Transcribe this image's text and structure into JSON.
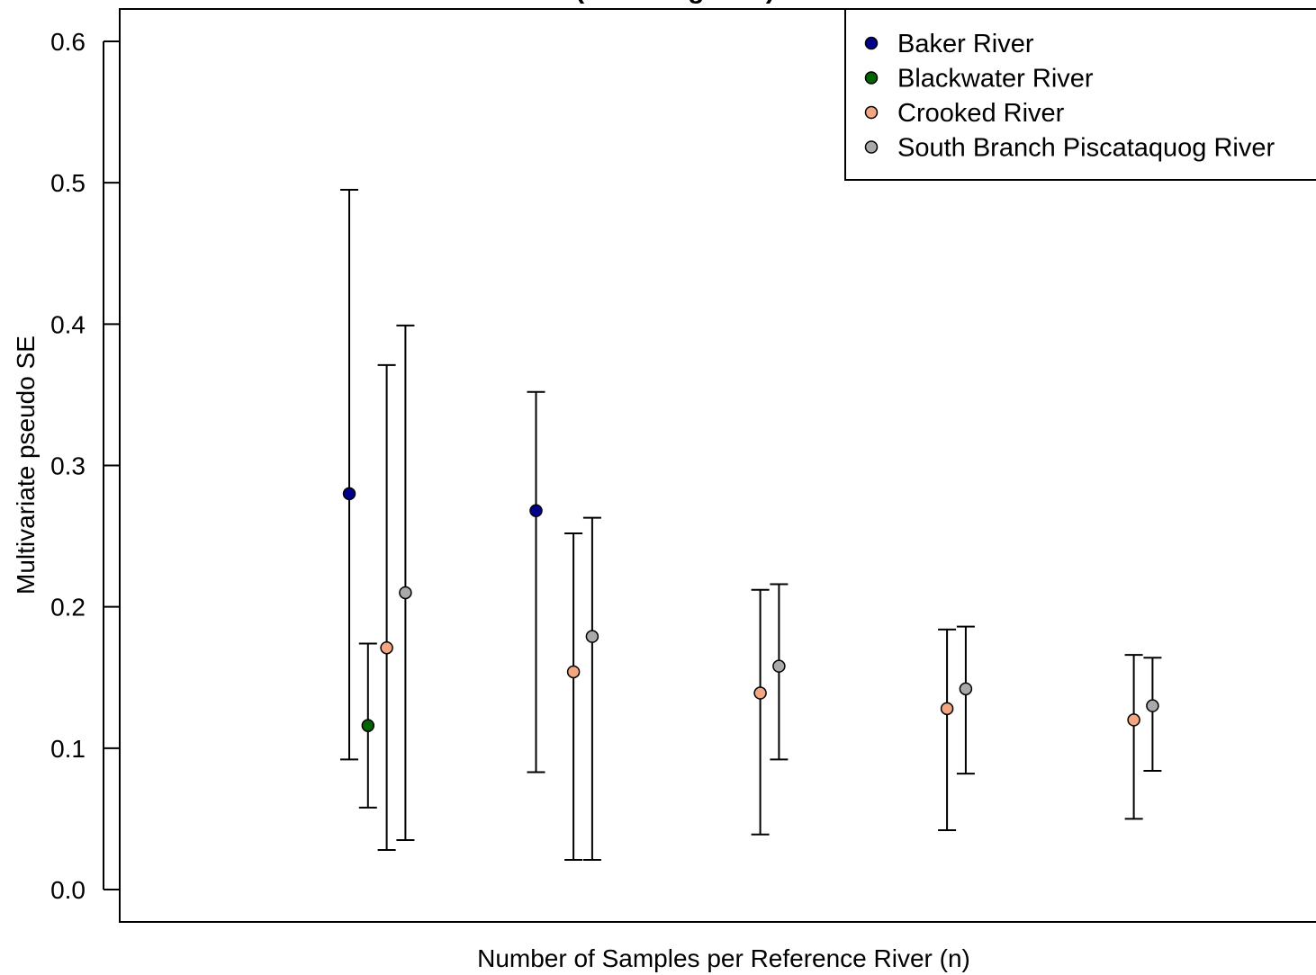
{
  "chart_data": {
    "type": "scatter",
    "title": "(… … … g… …)",
    "xlabel": "Number of Samples per Reference River (n)",
    "ylabel": "Multivariate pseudo SE",
    "ylim": [
      0,
      0.6
    ],
    "yticks": [
      "0.0",
      "0.1",
      "0.2",
      "0.3",
      "0.4",
      "0.5",
      "0.6"
    ],
    "xticks": [],
    "grid": false,
    "legend_position": "top-right",
    "groups": 5,
    "series": [
      {
        "name": "Baker River",
        "color": "#00008b",
        "points": [
          {
            "group": 1,
            "y": 0.28,
            "low": 0.092,
            "high": 0.495
          },
          {
            "group": 2,
            "y": 0.268,
            "low": 0.083,
            "high": 0.352
          }
        ]
      },
      {
        "name": "Blackwater River",
        "color": "#006400",
        "points": [
          {
            "group": 1,
            "y": 0.116,
            "low": 0.058,
            "high": 0.174
          }
        ]
      },
      {
        "name": "Crooked River",
        "color": "#f4a582",
        "points": [
          {
            "group": 1,
            "y": 0.171,
            "low": 0.028,
            "high": 0.371
          },
          {
            "group": 2,
            "y": 0.154,
            "low": 0.021,
            "high": 0.252
          },
          {
            "group": 3,
            "y": 0.139,
            "low": 0.039,
            "high": 0.212
          },
          {
            "group": 4,
            "y": 0.128,
            "low": 0.042,
            "high": 0.184
          },
          {
            "group": 5,
            "y": 0.12,
            "low": 0.05,
            "high": 0.166
          }
        ]
      },
      {
        "name": "South Branch Piscataquog River",
        "color": "#a9a9a9",
        "points": [
          {
            "group": 1,
            "y": 0.21,
            "low": 0.035,
            "high": 0.399
          },
          {
            "group": 2,
            "y": 0.179,
            "low": 0.021,
            "high": 0.263
          },
          {
            "group": 3,
            "y": 0.158,
            "low": 0.092,
            "high": 0.216
          },
          {
            "group": 4,
            "y": 0.142,
            "low": 0.082,
            "high": 0.186
          },
          {
            "group": 5,
            "y": 0.13,
            "low": 0.084,
            "high": 0.164
          }
        ]
      }
    ]
  }
}
